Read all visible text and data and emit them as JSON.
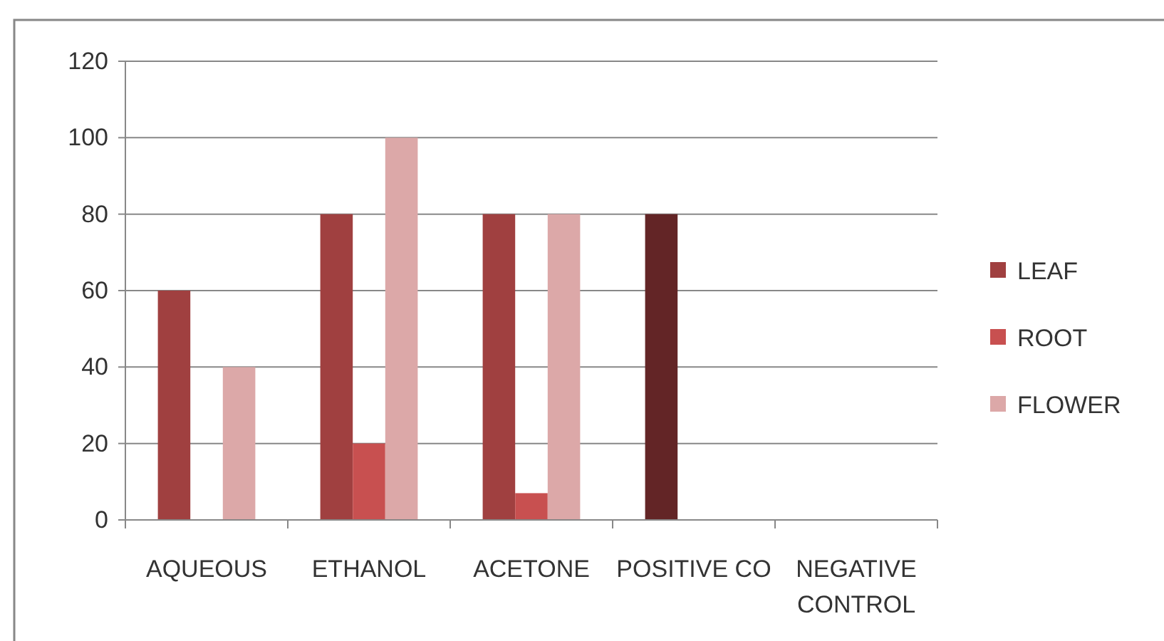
{
  "chart_data": {
    "type": "bar",
    "categories": [
      "AQUEOUS",
      "ETHANOL",
      "ACETONE",
      "POSITIVE CO",
      "NEGATIVE CONTROL"
    ],
    "series": [
      {
        "name": "LEAF",
        "color": "#a04040",
        "colors": [
          "#a04040",
          "#a04040",
          "#a04040",
          "#632526",
          "#a04040"
        ],
        "values": [
          60,
          80,
          80,
          80,
          0
        ]
      },
      {
        "name": "ROOT",
        "color": "#c85050",
        "values": [
          0,
          20,
          7,
          0,
          0
        ]
      },
      {
        "name": "FLOWER",
        "color": "#dca8a8",
        "values": [
          40,
          100,
          80,
          0,
          0
        ]
      }
    ],
    "ylim": [
      0,
      120
    ],
    "yticks": [
      0,
      20,
      40,
      60,
      80,
      100,
      120
    ],
    "grid": "y",
    "legend": "right"
  }
}
